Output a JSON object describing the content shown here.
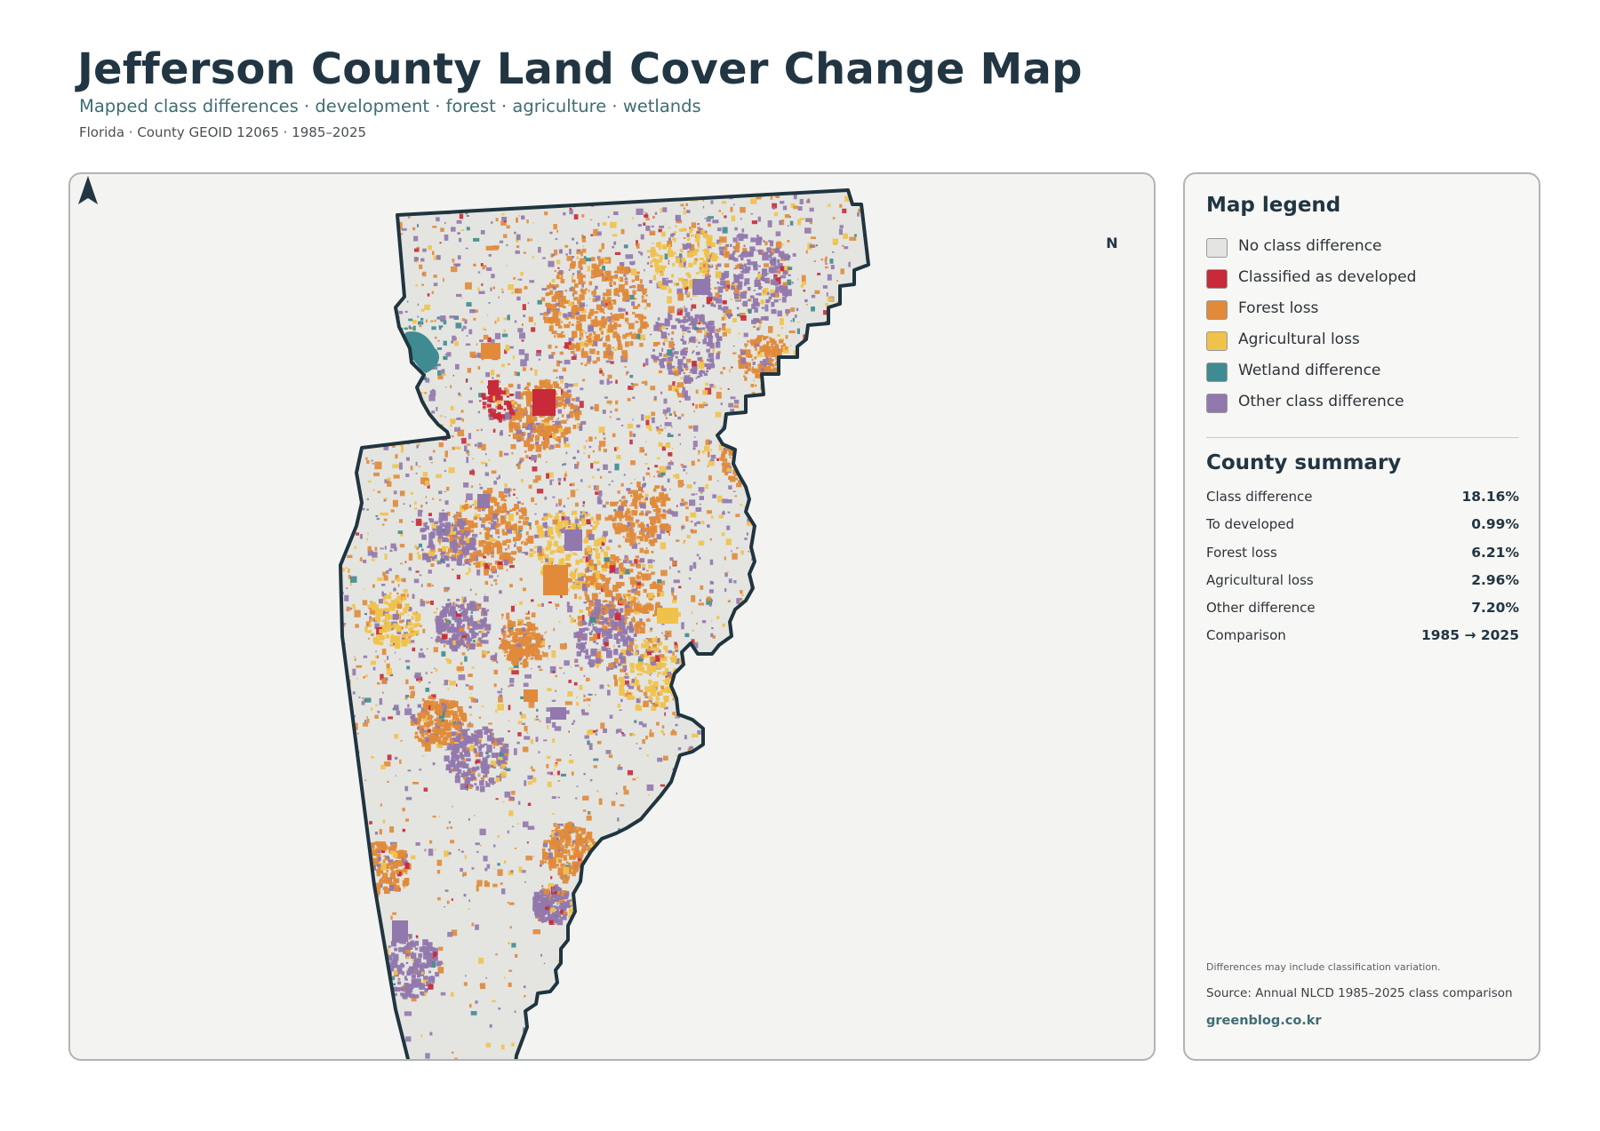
{
  "header": {
    "title": "Jefferson County Land Cover Change Map",
    "subtitle": "Mapped class differences · development · forest · agriculture · wetlands",
    "meta": "Florida · County GEOID 12065 · 1985–2025"
  },
  "map": {
    "north_label": "N",
    "outline_color": "#1f3540",
    "base_color": "#e4e5e1",
    "panel_color": "#f3f3f1"
  },
  "legend": {
    "heading": "Map legend",
    "items": [
      {
        "label": "No class difference",
        "color": "#e4e5e1"
      },
      {
        "label": "Classified as developed",
        "color": "#c82a3a"
      },
      {
        "label": "Forest loss",
        "color": "#e08a3a"
      },
      {
        "label": "Agricultural loss",
        "color": "#f0c24b"
      },
      {
        "label": "Wetland difference",
        "color": "#3f8b91"
      },
      {
        "label": "Other class difference",
        "color": "#9178ad"
      }
    ]
  },
  "summary": {
    "heading": "County summary",
    "rows": [
      {
        "key": "Class difference",
        "value": "18.16%"
      },
      {
        "key": "To developed",
        "value": "0.99%"
      },
      {
        "key": "Forest loss",
        "value": "6.21%"
      },
      {
        "key": "Agricultural loss",
        "value": "2.96%"
      },
      {
        "key": "Other difference",
        "value": "7.20%"
      },
      {
        "key": "Comparison",
        "value": "1985 → 2025"
      }
    ]
  },
  "footer": {
    "note": "Differences may include classification variation.",
    "source": "Source: Annual NLCD 1985–2025 class comparison",
    "site": "greenblog.co.kr"
  }
}
